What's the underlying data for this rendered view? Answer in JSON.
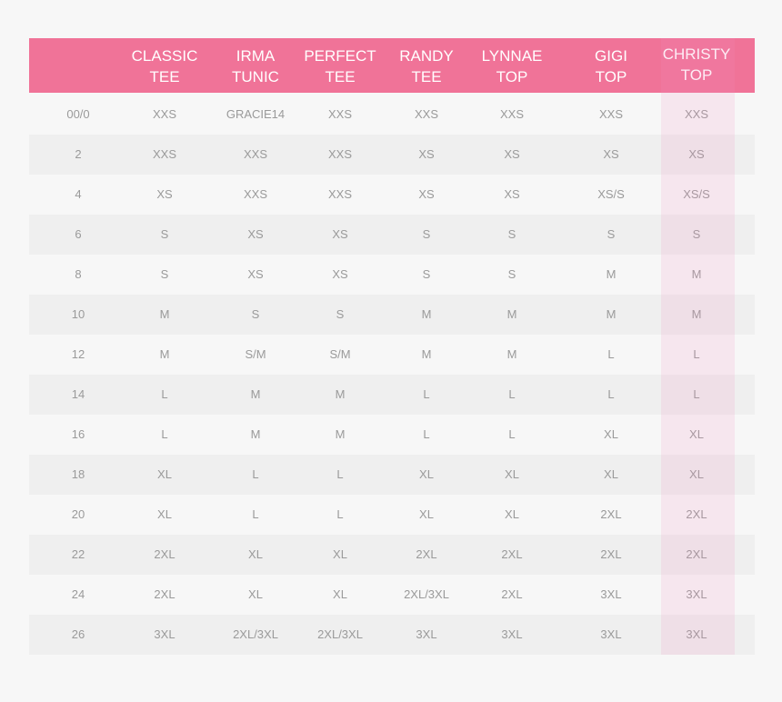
{
  "table": {
    "headers": [
      [
        "CLASSIC",
        "TEE"
      ],
      [
        "IRMA",
        "TUNIC"
      ],
      [
        "PERFECT",
        "TEE"
      ],
      [
        "RANDY",
        "TEE"
      ],
      [
        "LYNNAE",
        "TOP"
      ],
      [
        "GIGI",
        "TOP"
      ],
      [
        "CHRISTY",
        "TOP"
      ]
    ],
    "rows": [
      [
        "00/0",
        "XXS",
        "GRACIE14",
        "XXS",
        "XXS",
        "XXS",
        "XXS",
        "XXS"
      ],
      [
        "2",
        "XXS",
        "XXS",
        "XXS",
        "XS",
        "XS",
        "XS",
        "XS"
      ],
      [
        "4",
        "XS",
        "XXS",
        "XXS",
        "XS",
        "XS",
        "XS/S",
        "XS/S"
      ],
      [
        "6",
        "S",
        "XS",
        "XS",
        "S",
        "S",
        "S",
        "S"
      ],
      [
        "8",
        "S",
        "XS",
        "XS",
        "S",
        "S",
        "M",
        "M"
      ],
      [
        "10",
        "M",
        "S",
        "S",
        "M",
        "M",
        "M",
        "M"
      ],
      [
        "12",
        "M",
        "S/M",
        "S/M",
        "M",
        "M",
        "L",
        "L"
      ],
      [
        "14",
        "L",
        "M",
        "M",
        "L",
        "L",
        "L",
        "L"
      ],
      [
        "16",
        "L",
        "M",
        "M",
        "L",
        "L",
        "XL",
        "XL"
      ],
      [
        "18",
        "XL",
        "L",
        "L",
        "XL",
        "XL",
        "XL",
        "XL"
      ],
      [
        "20",
        "XL",
        "L",
        "L",
        "XL",
        "XL",
        "2XL",
        "2XL"
      ],
      [
        "22",
        "2XL",
        "XL",
        "XL",
        "2XL",
        "2XL",
        "2XL",
        "2XL"
      ],
      [
        "24",
        "2XL",
        "XL",
        "XL",
        "2XL/3XL",
        "2XL",
        "3XL",
        "3XL"
      ],
      [
        "26",
        "3XL",
        "2XL/3XL",
        "2XL/3XL",
        "3XL",
        "3XL",
        "3XL",
        "3XL"
      ]
    ]
  }
}
